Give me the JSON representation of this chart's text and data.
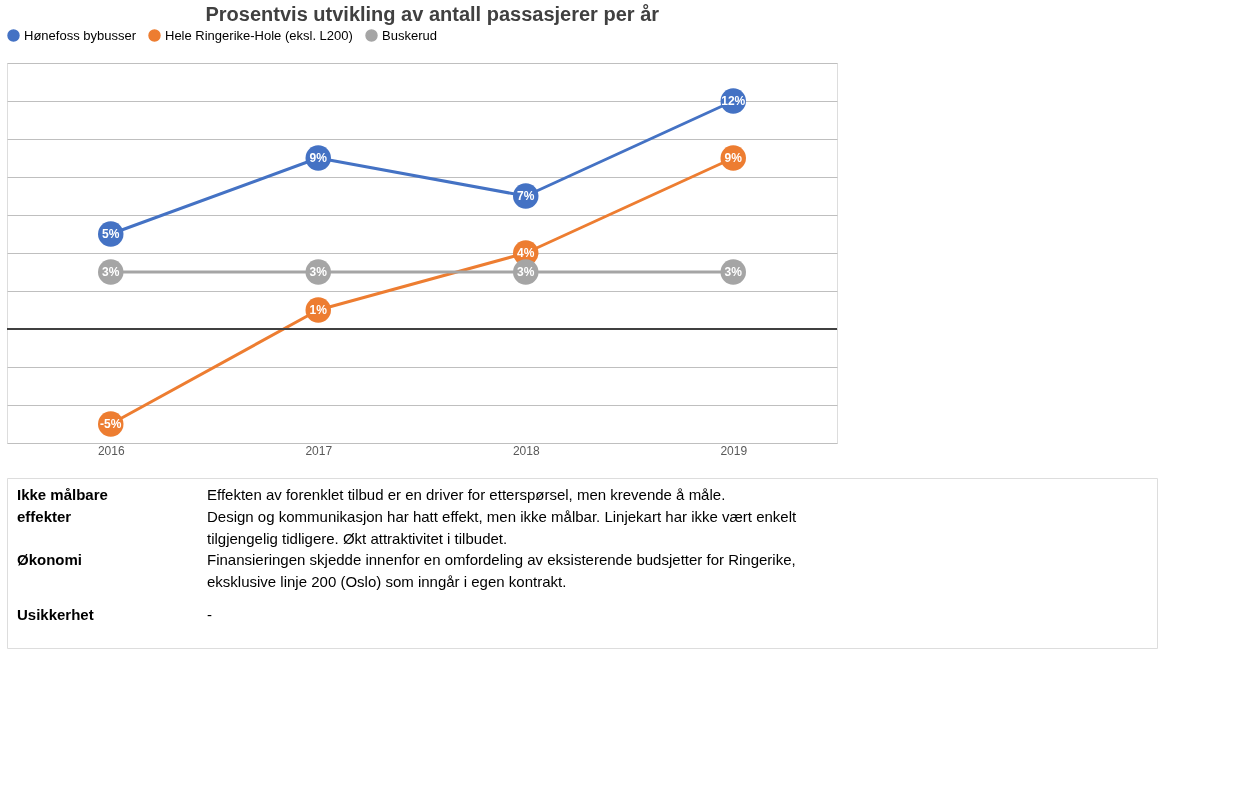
{
  "chart_data": {
    "type": "line",
    "title": "Prosentvis utvikling av antall passasjerer per år",
    "categories": [
      "2016",
      "2017",
      "2018",
      "2019"
    ],
    "series": [
      {
        "name": "Hønefoss bybusser",
        "color": "#4472c4",
        "values": [
          5,
          9,
          7,
          12
        ],
        "value_labels": [
          "5%",
          "9%",
          "7%",
          "12%"
        ]
      },
      {
        "name": "Hele Ringerike-Hole (eksl. L200)",
        "color": "#ed7d31",
        "values": [
          -5,
          1,
          4,
          9
        ],
        "value_labels": [
          "-5%",
          "1%",
          "4%",
          "9%"
        ]
      },
      {
        "name": "Buskerud",
        "color": "#a5a5a5",
        "values": [
          3,
          3,
          3,
          3
        ],
        "value_labels": [
          "3%",
          "3%",
          "3%",
          "3%"
        ]
      }
    ],
    "ylim": [
      -6,
      14
    ],
    "tick_labels": "x",
    "grid": "y",
    "legend": "top",
    "marker": "circle",
    "line_style": "solid",
    "ref_lines": [
      {
        "axis": "y",
        "value": 0,
        "color": "#404040"
      }
    ],
    "annotations": [
      "Ikke målbare\neffekter",
      "Effekten av forenklet tilbud er en driver for etterspørsel, men krevende å måle.\nDesign og kommunikasjon har hatt effekt, men ikke målbar. Linjekart har ikke vært enkelt\ntilgjengelig tidligere. Økt attraktivitet i tilbudet.",
      "Økonomi",
      "Finansieringen skjedde innenfor en omfordeling av eksisterende budsjetter for Ringerike,\neksklusive linje 200 (Oslo) som inngår i egen kontrakt.",
      "Usikkerhet",
      "-"
    ]
  }
}
